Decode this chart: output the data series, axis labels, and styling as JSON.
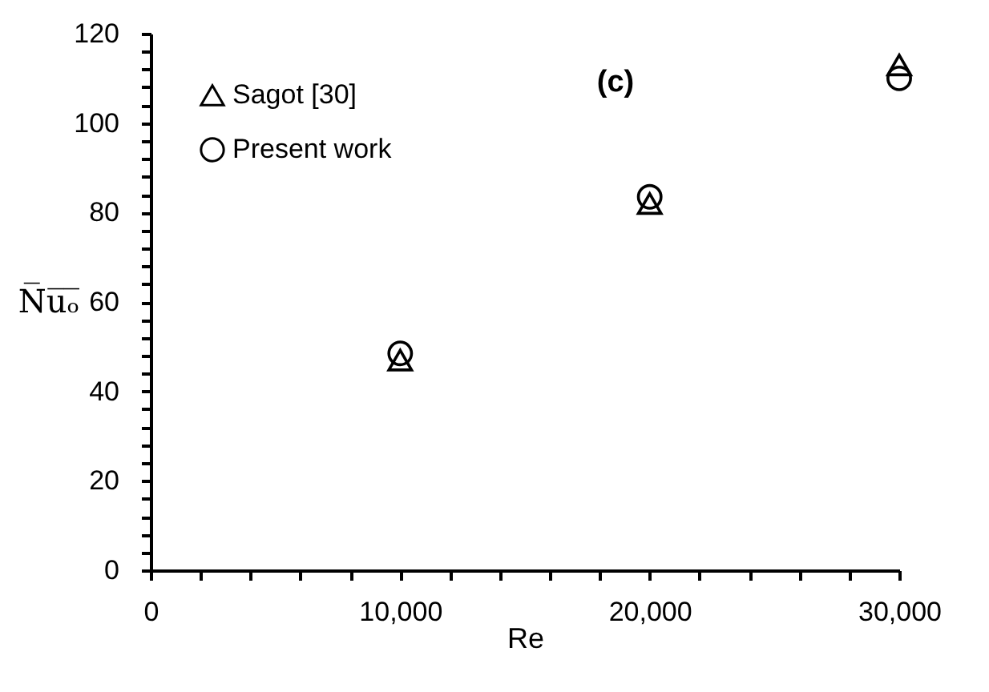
{
  "chart_data": {
    "type": "scatter",
    "xlabel": "Re",
    "ylabel": "N̅u̅ₒ̅",
    "annotations": [
      "(c)"
    ],
    "x": [
      10000,
      20000,
      30000
    ],
    "series": [
      {
        "name": "Sagot  [30]",
        "color": "#000000",
        "marker": "triangle",
        "values": [
          47,
          82,
          113
        ]
      },
      {
        "name": "Present work",
        "color": "#000000",
        "marker": "circle",
        "values": [
          48.5,
          83.5,
          110
        ]
      }
    ],
    "xlim": [
      0,
      30000
    ],
    "xticks": [
      0,
      {
        "value": 2000,
        "label": null
      },
      {
        "value": 4000,
        "label": null
      },
      {
        "value": 6000,
        "label": null
      },
      {
        "value": 8000,
        "label": null
      },
      {
        "value": 10000,
        "label": "10,000"
      },
      {
        "value": 12000,
        "label": null
      },
      {
        "value": 14000,
        "label": null
      },
      {
        "value": 16000,
        "label": null
      },
      {
        "value": 18000,
        "label": null
      },
      {
        "value": 20000,
        "label": "20,000"
      },
      {
        "value": 22000,
        "label": null
      },
      {
        "value": 24000,
        "label": null
      },
      {
        "value": 26000,
        "label": null
      },
      {
        "value": 28000,
        "label": null
      },
      {
        "value": 30000,
        "label": "30,000"
      }
    ],
    "ylim": [
      0,
      120
    ],
    "yticks": [
      0,
      {
        "value": 4,
        "label": null
      },
      {
        "value": 8,
        "label": null
      },
      {
        "value": 12,
        "label": null
      },
      {
        "value": 16,
        "label": null
      },
      20,
      {
        "value": 24,
        "label": null
      },
      {
        "value": 28,
        "label": null
      },
      {
        "value": 32,
        "label": null
      },
      {
        "value": 36,
        "label": null
      },
      40,
      {
        "value": 44,
        "label": null
      },
      {
        "value": 48,
        "label": null
      },
      {
        "value": 52,
        "label": null
      },
      {
        "value": 56,
        "label": null
      },
      60,
      {
        "value": 64,
        "label": null
      },
      {
        "value": 68,
        "label": null
      },
      {
        "value": 72,
        "label": null
      },
      {
        "value": 76,
        "label": null
      },
      80,
      {
        "value": 84,
        "label": null
      },
      {
        "value": 88,
        "label": null
      },
      {
        "value": 92,
        "label": null
      },
      {
        "value": 96,
        "label": null
      },
      100,
      {
        "value": 104,
        "label": null
      },
      {
        "value": 108,
        "label": null
      },
      {
        "value": 112,
        "label": null
      },
      {
        "value": 116,
        "label": null
      },
      120
    ],
    "grid": false,
    "legend": "top left"
  }
}
